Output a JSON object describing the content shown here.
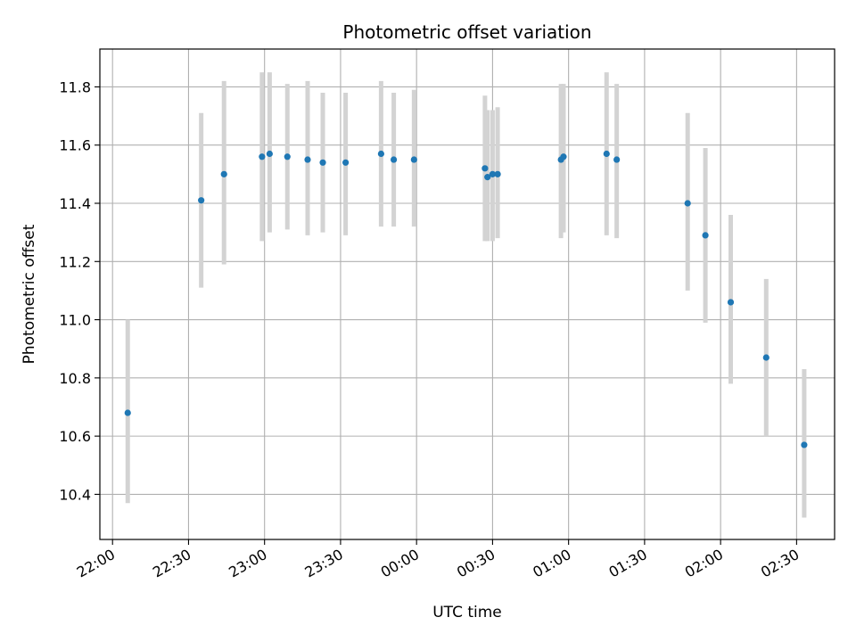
{
  "chart_data": {
    "type": "scatter",
    "title": "Photometric offset variation",
    "xlabel": "UTC time",
    "ylabel": "Photometric offset",
    "x_tick_labels": [
      "22:00",
      "22:30",
      "23:00",
      "23:30",
      "00:00",
      "00:30",
      "01:00",
      "01:30",
      "02:00",
      "02:30"
    ],
    "y_tick_labels": [
      "10.4",
      "10.6",
      "10.8",
      "11.0",
      "11.2",
      "11.4",
      "11.6",
      "11.8"
    ],
    "x_ticks": [
      "22:00",
      "22:30",
      "23:00",
      "23:30",
      "00:00",
      "00:30",
      "01:00",
      "01:30",
      "02:00",
      "02:30"
    ],
    "y_ticks": [
      10.4,
      10.6,
      10.8,
      11.0,
      11.2,
      11.4,
      11.6,
      11.8
    ],
    "xlim": [
      "21:55",
      "02:45"
    ],
    "ylim": [
      10.245,
      11.93
    ],
    "grid": true,
    "colors": {
      "marker": "#1f77b4",
      "errorbar": "#d3d3d3",
      "grid": "#b0b0b0"
    },
    "series": [
      {
        "points": [
          {
            "t": "22:06",
            "y": 10.68,
            "lo": 10.37,
            "hi": 11.0
          },
          {
            "t": "22:35",
            "y": 11.41,
            "lo": 11.11,
            "hi": 11.71
          },
          {
            "t": "22:44",
            "y": 11.5,
            "lo": 11.19,
            "hi": 11.82
          },
          {
            "t": "22:59",
            "y": 11.56,
            "lo": 11.27,
            "hi": 11.85
          },
          {
            "t": "23:02",
            "y": 11.57,
            "lo": 11.3,
            "hi": 11.85
          },
          {
            "t": "23:09",
            "y": 11.56,
            "lo": 11.31,
            "hi": 11.81
          },
          {
            "t": "23:17",
            "y": 11.55,
            "lo": 11.29,
            "hi": 11.82
          },
          {
            "t": "23:23",
            "y": 11.54,
            "lo": 11.3,
            "hi": 11.78
          },
          {
            "t": "23:32",
            "y": 11.54,
            "lo": 11.29,
            "hi": 11.78
          },
          {
            "t": "23:46",
            "y": 11.57,
            "lo": 11.32,
            "hi": 11.82
          },
          {
            "t": "23:51",
            "y": 11.55,
            "lo": 11.32,
            "hi": 11.78
          },
          {
            "t": "23:59",
            "y": 11.55,
            "lo": 11.32,
            "hi": 11.79
          },
          {
            "t": "00:27",
            "y": 11.52,
            "lo": 11.27,
            "hi": 11.77
          },
          {
            "t": "00:28",
            "y": 11.49,
            "lo": 11.27,
            "hi": 11.72
          },
          {
            "t": "00:30",
            "y": 11.5,
            "lo": 11.27,
            "hi": 11.72
          },
          {
            "t": "00:32",
            "y": 11.5,
            "lo": 11.28,
            "hi": 11.73
          },
          {
            "t": "00:57",
            "y": 11.55,
            "lo": 11.28,
            "hi": 11.81
          },
          {
            "t": "00:58",
            "y": 11.56,
            "lo": 11.3,
            "hi": 11.81
          },
          {
            "t": "01:15",
            "y": 11.57,
            "lo": 11.29,
            "hi": 11.85
          },
          {
            "t": "01:19",
            "y": 11.55,
            "lo": 11.28,
            "hi": 11.81
          },
          {
            "t": "01:47",
            "y": 11.4,
            "lo": 11.1,
            "hi": 11.71
          },
          {
            "t": "01:54",
            "y": 11.29,
            "lo": 10.99,
            "hi": 11.59
          },
          {
            "t": "02:04",
            "y": 11.06,
            "lo": 10.78,
            "hi": 11.36
          },
          {
            "t": "02:18",
            "y": 10.87,
            "lo": 10.6,
            "hi": 11.14
          },
          {
            "t": "02:33",
            "y": 10.57,
            "lo": 10.32,
            "hi": 10.83
          }
        ]
      }
    ]
  }
}
